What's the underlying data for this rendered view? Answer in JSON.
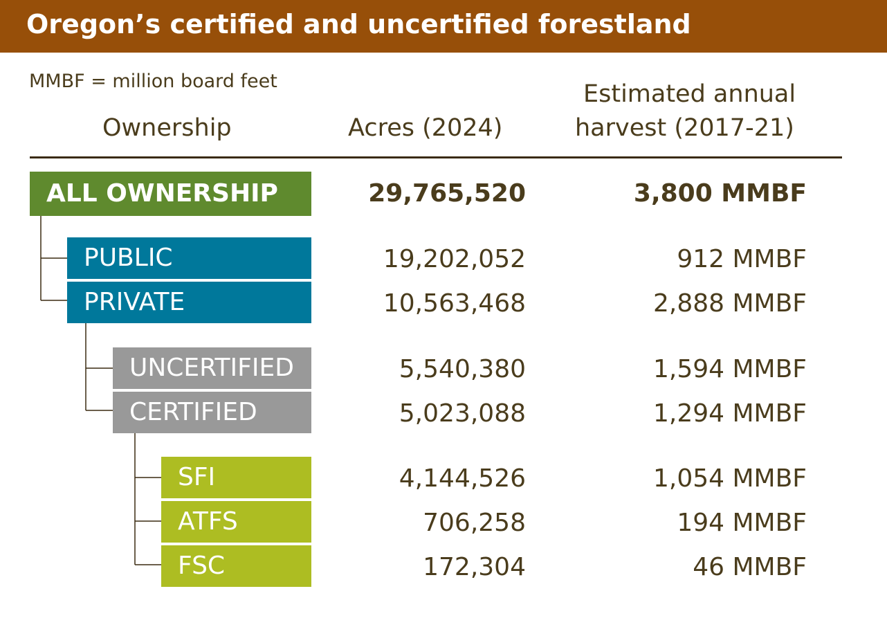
{
  "title": "Oregon’s certified and uncertified forestland",
  "note": "MMBF = million board feet",
  "chart_data": {
    "type": "table",
    "title": "Oregon’s certified and uncertified forestland",
    "columns": [
      "Ownership",
      "Acres (2024)",
      "Estimated annual harvest (2017-21)"
    ],
    "column_headers": {
      "ownership": "Ownership",
      "acres": "Acres (2024)",
      "harvest_line1": "Estimated annual",
      "harvest_line2": "harvest (2017-21)"
    },
    "rows": [
      {
        "ownership": "ALL OWNERSHIP",
        "level": 0,
        "acres": "29,765,520",
        "harvest": "3,800 MMBF"
      },
      {
        "ownership": "PUBLIC",
        "level": 1,
        "acres": "19,202,052",
        "harvest": "912 MMBF"
      },
      {
        "ownership": "PRIVATE",
        "level": 1,
        "acres": "10,563,468",
        "harvest": "2,888 MMBF"
      },
      {
        "ownership": "UNCERTIFIED",
        "level": 2,
        "acres": "5,540,380",
        "harvest": "1,594 MMBF"
      },
      {
        "ownership": "CERTIFIED",
        "level": 2,
        "acres": "5,023,088",
        "harvest": "1,294 MMBF"
      },
      {
        "ownership": "SFI",
        "level": 3,
        "acres": "4,144,526",
        "harvest": "1,054 MMBF"
      },
      {
        "ownership": "ATFS",
        "level": 3,
        "acres": "706,258",
        "harvest": "194 MMBF"
      },
      {
        "ownership": "FSC",
        "level": 3,
        "acres": "172,304",
        "harvest": "46 MMBF"
      }
    ]
  },
  "colors": {
    "title_bar": "#974f09",
    "level0": "#5f8a2e",
    "level1": "#00789b",
    "level2": "#999999",
    "level3": "#adbd22",
    "text": "#4a3c1c"
  }
}
